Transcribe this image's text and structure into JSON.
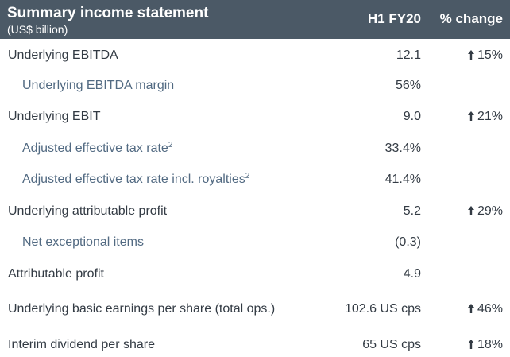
{
  "header": {
    "title": "Summary income statement",
    "subtitle": "(US$ billion)",
    "col_period": "H1 FY20",
    "col_change": "% change"
  },
  "rows": [
    {
      "label": "Underlying EBITDA",
      "value": "12.1",
      "change": "15%",
      "arrow": "up-arrow-icon"
    },
    {
      "label": "Underlying EBITDA margin",
      "value": "56%"
    },
    {
      "label": "Underlying EBIT",
      "value": "9.0",
      "change": "21%",
      "arrow": "up-arrow-icon"
    },
    {
      "label": "Adjusted effective tax rate",
      "sup": "2",
      "value": "33.4%"
    },
    {
      "label": "Adjusted effective tax rate incl. royalties",
      "sup": "2",
      "value": "41.4%"
    },
    {
      "label": "Underlying attributable profit",
      "value": "5.2",
      "change": "29%",
      "arrow": "up-arrow-icon"
    },
    {
      "label": "Net exceptional items",
      "value": "(0.3)"
    },
    {
      "label": "Attributable profit",
      "value": "4.9"
    },
    {
      "label": "Underlying basic earnings per share (total ops.)",
      "value": "102.6 US cps",
      "change": "46%",
      "arrow": "up-arrow-icon"
    },
    {
      "label": "Interim dividend per share",
      "value": "65 US cps",
      "change": "18%",
      "arrow": "up-arrow-icon"
    }
  ],
  "colors": {
    "header_bg": "#4b5966",
    "header_text": "#ffffff",
    "main_text": "#333b44",
    "sub_text": "#526a82"
  }
}
